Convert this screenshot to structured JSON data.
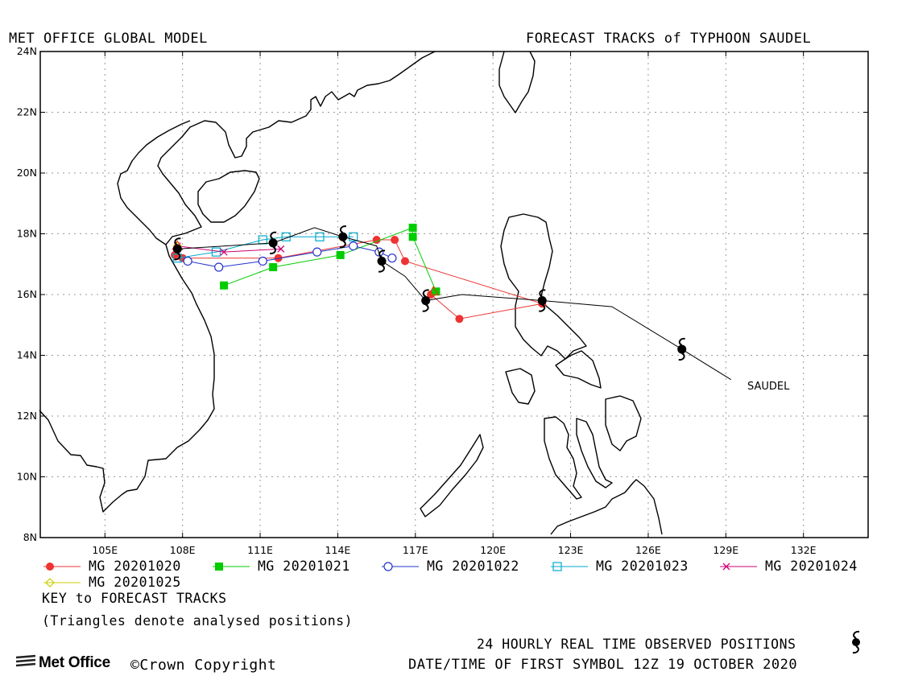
{
  "header": {
    "left_title": "MET OFFICE GLOBAL MODEL",
    "right_title": "FORECAST TRACKS of TYPHOON SAUDEL"
  },
  "map": {
    "lon_range": [
      102.5,
      134.5
    ],
    "lat_range": [
      8,
      24
    ],
    "lon_ticks": [
      {
        "value": 105,
        "label": "105E"
      },
      {
        "value": 108,
        "label": "108E"
      },
      {
        "value": 111,
        "label": "111E"
      },
      {
        "value": 114,
        "label": "114E"
      },
      {
        "value": 117,
        "label": "117E"
      },
      {
        "value": 120,
        "label": "120E"
      },
      {
        "value": 123,
        "label": "123E"
      },
      {
        "value": 126,
        "label": "126E"
      },
      {
        "value": 129,
        "label": "129E"
      },
      {
        "value": 132,
        "label": "132E"
      }
    ],
    "lat_ticks": [
      {
        "value": 24,
        "label": "24N"
      },
      {
        "value": 22,
        "label": "22N"
      },
      {
        "value": 20,
        "label": "20N"
      },
      {
        "value": 18,
        "label": "18N"
      },
      {
        "value": 16,
        "label": "16N"
      },
      {
        "value": 14,
        "label": "14N"
      },
      {
        "value": 12,
        "label": "12N"
      },
      {
        "value": 10,
        "label": "10N"
      },
      {
        "value": 8,
        "label": "8N"
      }
    ],
    "grid": true,
    "storm_label": "SAUDEL",
    "observed_track": [
      [
        129.2,
        13.2
      ],
      [
        127.3,
        14.2
      ],
      [
        124.6,
        15.6
      ],
      [
        121.9,
        15.8
      ],
      [
        118.8,
        16.0
      ],
      [
        117.4,
        15.8
      ],
      [
        116.6,
        16.6
      ],
      [
        115.7,
        17.1
      ],
      [
        115.5,
        17.6
      ],
      [
        114.2,
        17.9
      ],
      [
        113.1,
        18.2
      ],
      [
        111.5,
        17.7
      ],
      [
        107.8,
        17.5
      ]
    ],
    "observed_positions": [
      [
        127.3,
        14.2
      ],
      [
        121.9,
        15.8
      ],
      [
        117.4,
        15.8
      ],
      [
        115.7,
        17.1
      ],
      [
        114.2,
        17.9
      ],
      [
        111.5,
        17.7
      ],
      [
        107.8,
        17.5
      ]
    ]
  },
  "legend": {
    "items": [
      {
        "label": "MG 20201020",
        "color": "#ee3333",
        "marker": "filled-circle"
      },
      {
        "label": "MG 20201021",
        "color": "#00cc00",
        "marker": "filled-square"
      },
      {
        "label": "MG 20201022",
        "color": "#2233cc",
        "marker": "open-circle"
      },
      {
        "label": "MG 20201023",
        "color": "#00aacc",
        "marker": "open-square"
      },
      {
        "label": "MG 20201024",
        "color": "#cc0077",
        "marker": "cross"
      },
      {
        "label": "MG 20201025",
        "color": "#cccc00",
        "marker": "open-diamond"
      }
    ],
    "key_title": "KEY to FORECAST TRACKS",
    "triangles_note": "(Triangles denote analysed positions)"
  },
  "footer": {
    "observed_note": "24 HOURLY REAL TIME OBSERVED POSITIONS",
    "first_symbol": "DATE/TIME OF FIRST SYMBOL 12Z 19 OCTOBER 2020",
    "brand": "Met Office",
    "copyright": "©Crown Copyright"
  },
  "chart_data": {
    "type": "map-tracks",
    "series": [
      {
        "name": "MG 20201020",
        "color": "#ee3333",
        "marker": "filled-circle",
        "points": [
          [
            117.6,
            16.0
          ],
          [
            118.7,
            15.2
          ],
          [
            121.9,
            15.7
          ],
          [
            116.6,
            17.1
          ],
          [
            116.2,
            17.8
          ],
          [
            115.5,
            17.8
          ],
          [
            111.7,
            17.2
          ],
          [
            108.0,
            17.2
          ],
          [
            107.7,
            17.3
          ]
        ]
      },
      {
        "name": "MG 20201021",
        "color": "#00cc00",
        "marker": "filled-square",
        "points": [
          [
            117.8,
            16.1
          ],
          [
            116.9,
            17.9
          ],
          [
            116.9,
            18.2
          ],
          [
            116.9,
            18.2
          ],
          [
            114.1,
            17.3
          ],
          [
            111.5,
            16.9
          ],
          [
            109.6,
            16.3
          ]
        ]
      },
      {
        "name": "MG 20201022",
        "color": "#2233cc",
        "marker": "open-circle",
        "points": [
          [
            116.1,
            17.2
          ],
          [
            115.6,
            17.4
          ],
          [
            114.6,
            17.6
          ],
          [
            113.2,
            17.4
          ],
          [
            111.1,
            17.1
          ],
          [
            109.4,
            16.9
          ],
          [
            108.2,
            17.1
          ]
        ]
      },
      {
        "name": "MG 20201023",
        "color": "#00aacc",
        "marker": "open-square",
        "points": [
          [
            114.6,
            17.9
          ],
          [
            113.3,
            17.9
          ],
          [
            112.0,
            17.9
          ],
          [
            111.1,
            17.8
          ],
          [
            109.3,
            17.4
          ],
          [
            107.8,
            17.2
          ]
        ]
      },
      {
        "name": "MG 20201024",
        "color": "#cc0077",
        "marker": "cross",
        "points": [
          [
            111.8,
            17.5
          ],
          [
            109.6,
            17.4
          ],
          [
            107.8,
            17.6
          ]
        ]
      },
      {
        "name": "MG 20201025",
        "color": "#cccc00",
        "marker": "open-diamond",
        "points": [
          [
            107.8,
            17.6
          ]
        ]
      }
    ],
    "analysed_positions": [
      [
        117.7,
        16.1
      ],
      [
        107.8,
        17.6
      ]
    ]
  }
}
